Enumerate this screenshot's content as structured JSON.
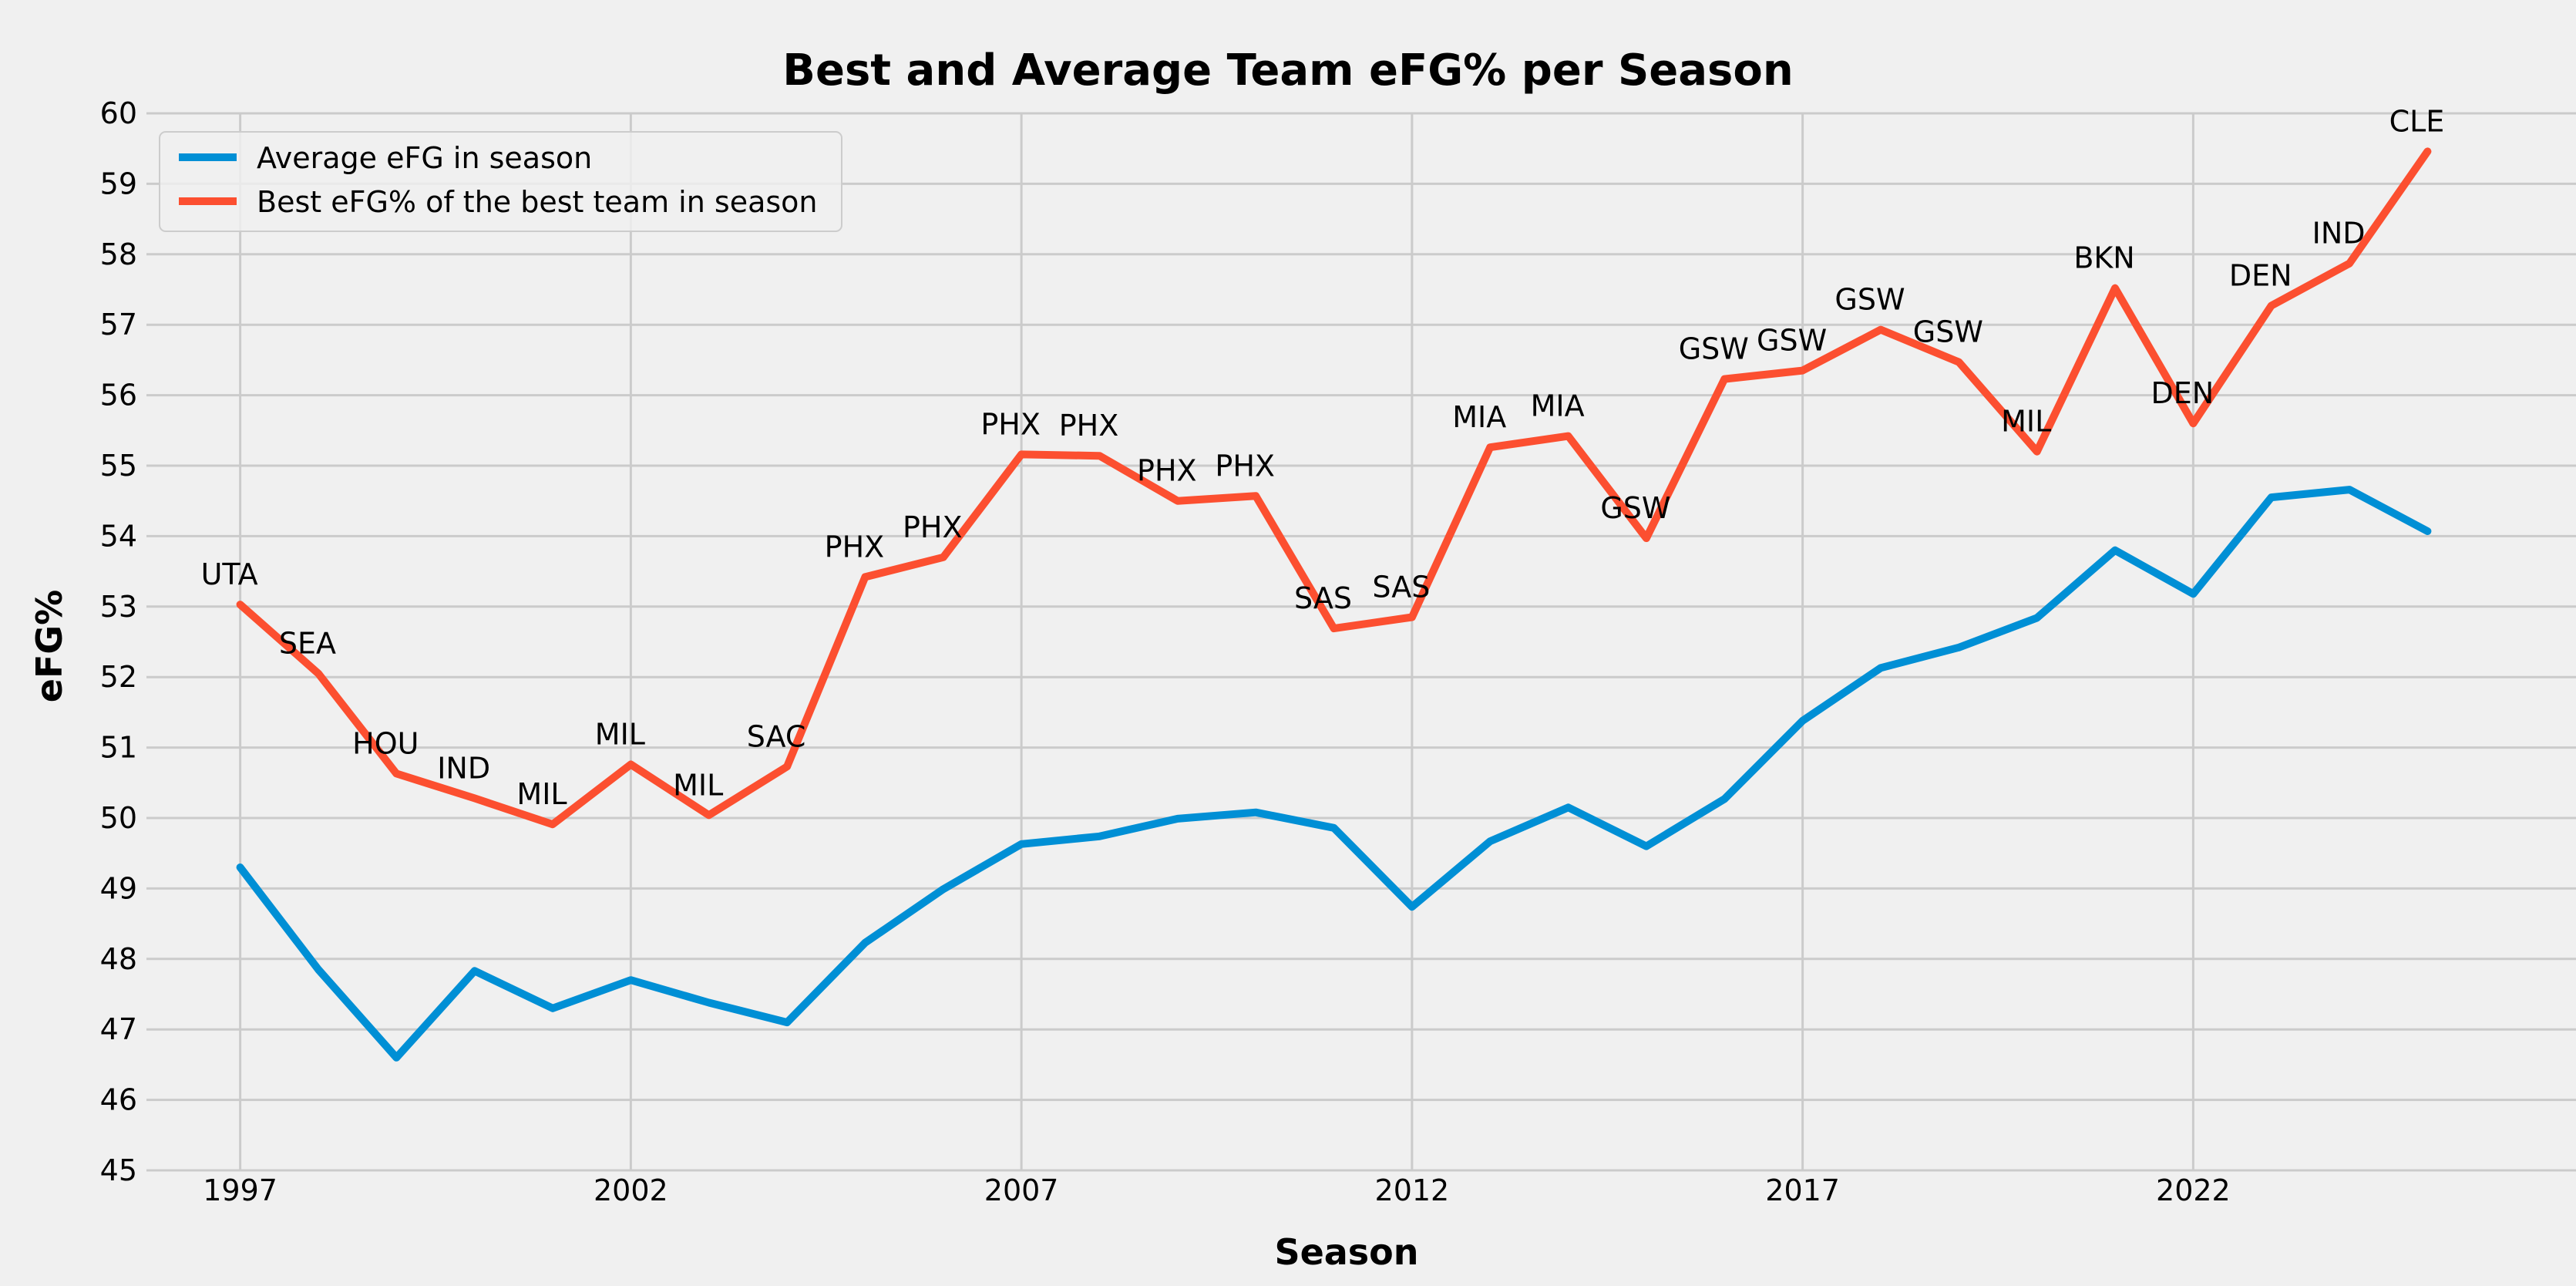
{
  "chart_data": {
    "type": "line",
    "title": "Best and Average Team eFG% per Season",
    "xlabel": "Season",
    "ylabel": "eFG%",
    "xlim": [
      1995.8,
      2026.9
    ],
    "ylim": [
      45,
      60
    ],
    "xticks": [
      1997,
      2002,
      2007,
      2012,
      2017,
      2022
    ],
    "yticks": [
      45,
      46,
      47,
      48,
      49,
      50,
      51,
      52,
      53,
      54,
      55,
      56,
      57,
      58,
      59,
      60
    ],
    "grid": true,
    "legend_position": "top-left",
    "x": [
      1997,
      1998,
      1999,
      2000,
      2001,
      2002,
      2003,
      2004,
      2005,
      2006,
      2007,
      2008,
      2009,
      2010,
      2011,
      2012,
      2013,
      2014,
      2015,
      2016,
      2017,
      2018,
      2019,
      2020,
      2021,
      2022,
      2023,
      2024,
      2025
    ],
    "series": [
      {
        "name": "Average eFG in season",
        "color": "#008fd5",
        "values": [
          49.3,
          47.85,
          46.6,
          47.83,
          47.3,
          47.7,
          47.38,
          47.1,
          48.23,
          48.99,
          49.63,
          49.74,
          49.99,
          50.08,
          49.86,
          48.74,
          49.67,
          50.15,
          49.6,
          50.27,
          51.38,
          52.13,
          52.42,
          52.84,
          53.8,
          53.18,
          54.55,
          54.66,
          54.07
        ]
      },
      {
        "name": "Best eFG% of the best team in season",
        "color": "#fc4f30",
        "values": [
          53.03,
          52.05,
          50.63,
          50.28,
          49.91,
          50.76,
          50.04,
          50.73,
          53.42,
          53.7,
          55.16,
          55.14,
          54.5,
          54.57,
          52.69,
          52.85,
          55.26,
          55.42,
          53.97,
          56.23,
          56.35,
          56.93,
          56.47,
          55.2,
          57.52,
          55.6,
          57.27,
          57.87,
          59.46
        ],
        "labels": [
          "UTA",
          "SEA",
          "HOU",
          "IND",
          "MIL",
          "MIL",
          "MIL",
          "SAC",
          "PHX",
          "PHX",
          "PHX",
          "PHX",
          "PHX",
          "PHX",
          "SAS",
          "SAS",
          "MIA",
          "MIA",
          "GSW",
          "GSW",
          "GSW",
          "GSW",
          "GSW",
          "MIL",
          "BKN",
          "DEN",
          "DEN",
          "IND",
          "CLE"
        ]
      }
    ]
  }
}
